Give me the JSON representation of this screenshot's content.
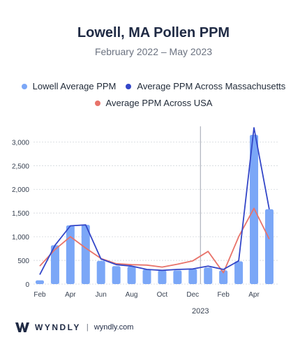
{
  "title": "Lowell, MA Pollen PPM",
  "subtitle": "February 2022 – May 2023",
  "colors": {
    "bar": "#7ba7f7",
    "ma_line": "#3346c8",
    "usa_line": "#e8736a",
    "divider": "#9ca3af",
    "brand": "#1f2a44"
  },
  "footer": {
    "brand": "WYNDLY",
    "separator": "|",
    "url": "wyndly.com"
  },
  "chart_data": {
    "type": "bar",
    "ylim": [
      0,
      3300
    ],
    "grid": true,
    "legend_position": "top-center",
    "y_ticks": [
      "0",
      "500",
      "1,000",
      "1,500",
      "2,000",
      "2,500",
      "3,000"
    ],
    "x_tick_labels": [
      "Feb",
      "Apr",
      "Jun",
      "Aug",
      "Oct",
      "Dec",
      "Feb",
      "Apr"
    ],
    "year_label": "2023",
    "categories": [
      "Feb 2022",
      "Mar 2022",
      "Apr 2022",
      "May 2022",
      "Jun 2022",
      "Jul 2022",
      "Aug 2022",
      "Sep 2022",
      "Oct 2022",
      "Nov 2022",
      "Dec 2022",
      "Jan 2023",
      "Feb 2023",
      "Mar 2023",
      "Apr 2023",
      "May 2023"
    ],
    "series": [
      {
        "name": "Lowell Average PPM",
        "kind": "bar",
        "values": [
          80,
          820,
          1240,
          1250,
          490,
          380,
          370,
          310,
          290,
          290,
          320,
          350,
          290,
          480,
          3150,
          1580
        ]
      },
      {
        "name": "Average PPM Across Massachusetts",
        "kind": "line",
        "values": [
          200,
          820,
          1230,
          1250,
          530,
          410,
          380,
          310,
          290,
          310,
          320,
          380,
          310,
          490,
          3300,
          1580
        ]
      },
      {
        "name": "Average PPM Across USA",
        "kind": "line",
        "values": [
          380,
          730,
          1000,
          760,
          540,
          430,
          410,
          400,
          360,
          420,
          490,
          690,
          240,
          1000,
          1600,
          950
        ]
      }
    ]
  }
}
